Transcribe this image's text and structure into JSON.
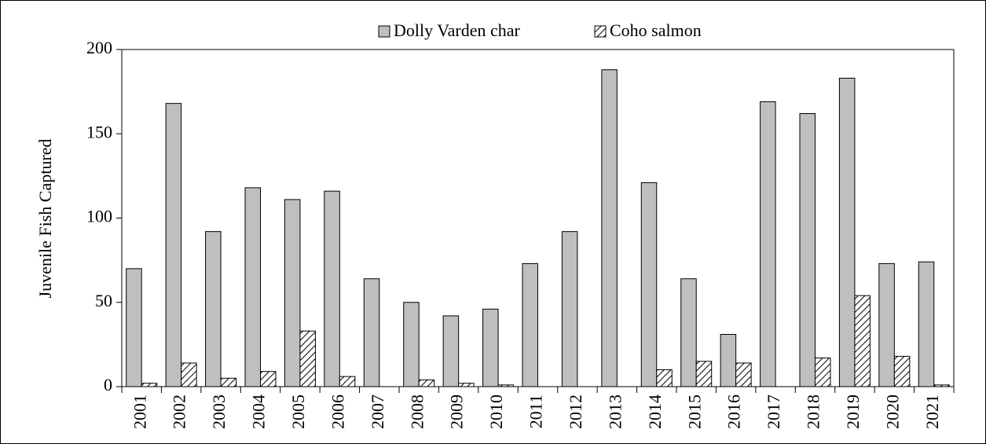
{
  "chart_data": {
    "type": "bar",
    "y_label": "Juvenile Fish Captured",
    "categories": [
      "2001",
      "2002",
      "2003",
      "2004",
      "2005",
      "2006",
      "2007",
      "2008",
      "2009",
      "2010",
      "2011",
      "2012",
      "2013",
      "2014",
      "2015",
      "2016",
      "2017",
      "2018",
      "2019",
      "2020",
      "2021"
    ],
    "series": [
      {
        "name": "Dolly Varden char",
        "color": "#bfbfbf",
        "values": [
          70,
          168,
          92,
          118,
          111,
          116,
          64,
          50,
          42,
          46,
          73,
          92,
          188,
          121,
          64,
          31,
          169,
          162,
          183,
          73,
          74
        ]
      },
      {
        "name": "Coho salmon",
        "color": "#000000",
        "pattern": "hatch",
        "values": [
          2,
          14,
          5,
          9,
          33,
          6,
          0,
          4,
          2,
          1,
          0,
          0,
          0,
          10,
          15,
          14,
          0,
          17,
          54,
          18,
          1
        ]
      }
    ],
    "ylim": [
      0,
      200
    ],
    "yticks": [
      0,
      50,
      100,
      150,
      200
    ],
    "legend": "top"
  }
}
